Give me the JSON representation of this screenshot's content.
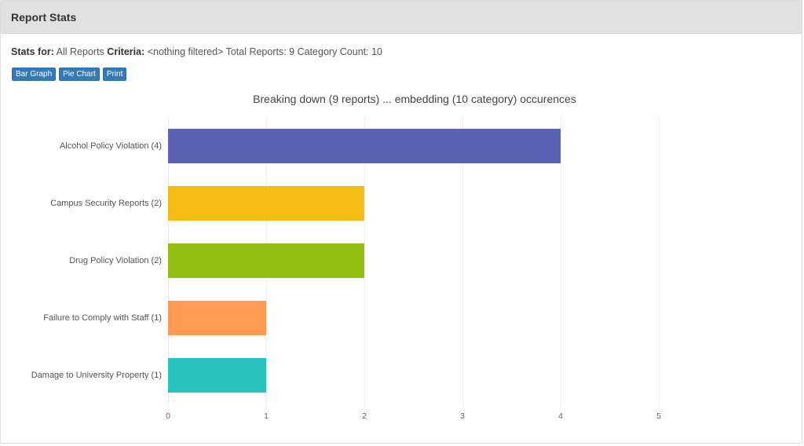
{
  "panel": {
    "title": "Report Stats"
  },
  "stats": {
    "stats_for_label": "Stats for:",
    "stats_for_value": "All Reports",
    "criteria_label": "Criteria:",
    "criteria_value": "<nothing filtered>",
    "total_reports": "Total Reports: 9",
    "category_count": "Category Count: 10"
  },
  "buttons": {
    "bar_graph": "Bar Graph",
    "pie_chart": "Pie Chart",
    "print": "Print"
  },
  "colors": {
    "button_blue": "#337ab7",
    "header_bg": "#e1e1e1"
  },
  "chart_data": {
    "type": "bar",
    "orientation": "horizontal",
    "title": "Breaking down (9 reports) ... embedding (10 category) occurences",
    "xlabel": "",
    "ylabel": "",
    "categories": [
      "Alcohol Policy Violation (4)",
      "Campus Security Reports (2)",
      "Drug Policy Violation (2)",
      "Failure to Comply with Staff (1)",
      "Damage to University Property (1)"
    ],
    "values": [
      4,
      2,
      2,
      1,
      1
    ],
    "colors": [
      "#5c63b5",
      "#f5bc16",
      "#91bf12",
      "#ff9a55",
      "#27c3bc"
    ],
    "xlim": [
      0,
      5
    ],
    "xticks": [
      "0",
      "1",
      "2",
      "3",
      "4",
      "5"
    ],
    "grid": true,
    "legend": "none"
  }
}
